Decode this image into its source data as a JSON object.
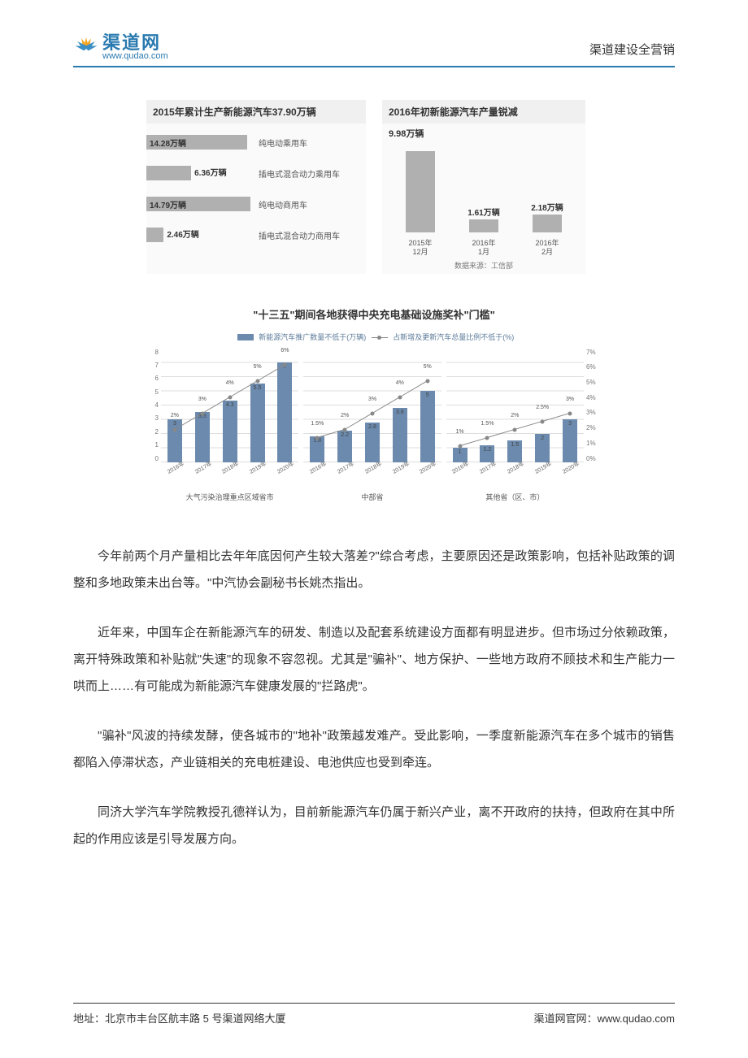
{
  "header": {
    "logo_main": "渠道网",
    "logo_sub": "www.qudao.com",
    "right_text": "渠道建设全营销"
  },
  "chart1": {
    "title": "2015年累计生产新能源汽车37.90万辆",
    "max_value": 15,
    "bar_color": "#b0b0b0",
    "items": [
      {
        "value": 14.28,
        "value_label": "14.28万辆",
        "label": "纯电动乘用车"
      },
      {
        "value": 6.36,
        "value_label": "6.36万辆",
        "label": "插电式混合动力乘用车"
      },
      {
        "value": 14.79,
        "value_label": "14.79万辆",
        "label": "纯电动商用车"
      },
      {
        "value": 2.46,
        "value_label": "2.46万辆",
        "label": "插电式混合动力商用车"
      }
    ]
  },
  "chart2": {
    "title": "2016年初新能源汽车产量锐减",
    "peak_label": "9.98万辆",
    "max_value": 10,
    "bar_color": "#b0b0b0",
    "items": [
      {
        "value": 9.98,
        "value_label": "",
        "label_line1": "2015年",
        "label_line2": "12月"
      },
      {
        "value": 1.61,
        "value_label": "1.61万辆",
        "label_line1": "2016年",
        "label_line2": "1月"
      },
      {
        "value": 2.18,
        "value_label": "2.18万辆",
        "label_line1": "2016年",
        "label_line2": "2月"
      }
    ],
    "source": "数据来源：工信部"
  },
  "chart3": {
    "title": "\"十三五\"期间各地获得中央充电基础设施奖补\"门槛\"",
    "legend_bar": "新能源汽车推广数量不低于(万辆)",
    "legend_line": "占新增及更新汽车总量比例不低于(%)",
    "y_left": [
      "8",
      "7",
      "6",
      "5",
      "4",
      "3",
      "2",
      "1",
      "0"
    ],
    "y_right": [
      "7%",
      "6%",
      "5%",
      "4%",
      "3%",
      "2%",
      "1%",
      "0%"
    ],
    "y_left_max": 8,
    "y_right_max": 7,
    "bar_color": "#6b8aad",
    "line_color": "#888888",
    "x_labels": [
      "2016年",
      "2017年",
      "2018年",
      "2019年",
      "2020年"
    ],
    "panels": [
      {
        "title": "大气污染治理重点区域省市",
        "bars": [
          3,
          3.5,
          4.3,
          5.5,
          7
        ],
        "bar_labels": [
          "3",
          "3.5",
          "4.3",
          "5.5",
          "7"
        ],
        "line_pct": [
          2,
          3,
          4,
          5,
          6
        ],
        "line_labels": [
          "2%",
          "3%",
          "4%",
          "5%",
          "6%"
        ]
      },
      {
        "title": "中部省",
        "bars": [
          1.8,
          2.2,
          2.8,
          3.8,
          5
        ],
        "bar_labels": [
          "1.8",
          "2.2",
          "2.8",
          "3.8",
          "5"
        ],
        "line_pct": [
          1.5,
          2,
          3,
          4,
          5
        ],
        "line_labels": [
          "1.5%",
          "2%",
          "3%",
          "4%",
          "5%"
        ]
      },
      {
        "title": "其他省（区、市）",
        "bars": [
          1,
          1.2,
          1.5,
          2,
          3
        ],
        "bar_labels": [
          "1",
          "1.2",
          "1.5",
          "2",
          "3"
        ],
        "line_pct": [
          1,
          1.5,
          2,
          2.5,
          3
        ],
        "line_labels": [
          "1%",
          "1.5%",
          "2%",
          "2.5%",
          "3%"
        ]
      }
    ]
  },
  "paragraphs": {
    "p1": "今年前两个月产量相比去年年底因何产生较大落差?\"综合考虑，主要原因还是政策影响，包括补贴政策的调整和多地政策未出台等。\"中汽协会副秘书长姚杰指出。",
    "p2": "近年来，中国车企在新能源汽车的研发、制造以及配套系统建设方面都有明显进步。但市场过分依赖政策，离开特殊政策和补贴就\"失速\"的现象不容忽视。尤其是\"骗补\"、地方保护、一些地方政府不顾技术和生产能力一哄而上……有可能成为新能源汽车健康发展的\"拦路虎\"。",
    "p3": "\"骗补\"风波的持续发酵，使各城市的\"地补\"政策越发难产。受此影响，一季度新能源汽车在多个城市的销售都陷入停滞状态，产业链相关的充电桩建设、电池供应也受到牵连。",
    "p4": "同济大学汽车学院教授孔德祥认为，目前新能源汽车仍属于新兴产业，离不开政府的扶持，但政府在其中所起的作用应该是引导发展方向。"
  },
  "footer": {
    "left": "地址：北京市丰台区航丰路 5 号渠道网络大厦",
    "right": "渠道网官网：www.qudao.com"
  }
}
